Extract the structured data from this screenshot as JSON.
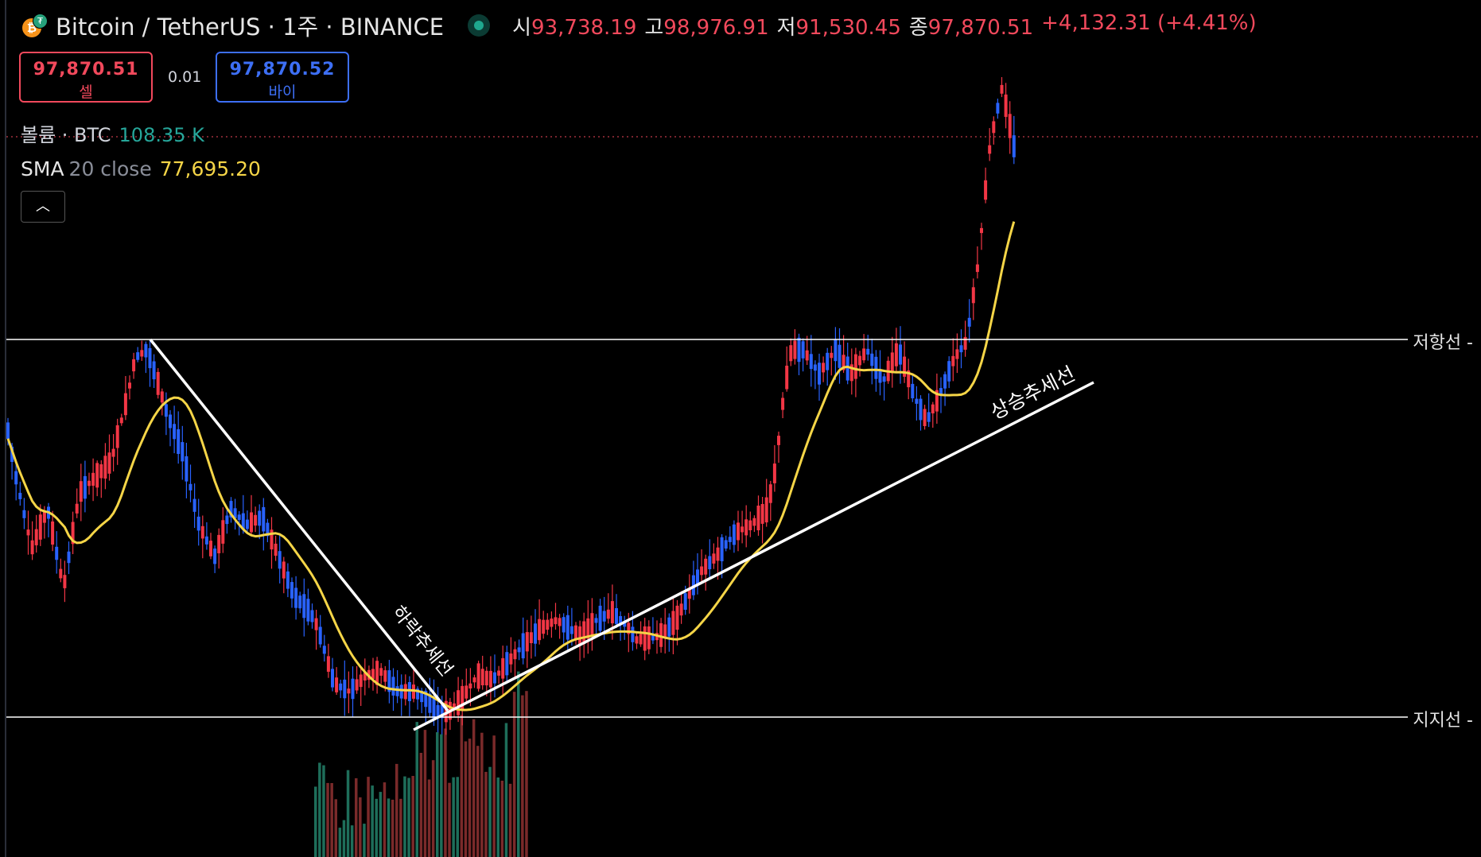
{
  "header": {
    "title": "Bitcoin / TetherUS · 1주 · BINANCE",
    "ohlc": {
      "open_label": "시",
      "open": "93,738.19",
      "high_label": "고",
      "high": "98,976.91",
      "low_label": "저",
      "low": "91,530.45",
      "close_label": "종",
      "close": "97,870.51",
      "change": "+4,132.31 (+4.41%)"
    }
  },
  "trade": {
    "sell_price": "97,870.51",
    "sell_label": "셀",
    "spread": "0.01",
    "buy_price": "97,870.52",
    "buy_label": "바이"
  },
  "indicators": {
    "volume_label": "볼륨 · BTC",
    "volume_value": "108.35 K",
    "sma_label": "SMA",
    "sma_params": "20 close",
    "sma_value": "77,695.20"
  },
  "annotations": {
    "resistance": "저항선 -",
    "support": "지지선 -",
    "downtrend": "하락추세선",
    "uptrend": "상승추세선"
  },
  "colors": {
    "up": "#f23645",
    "down": "#2962ff",
    "sma": "#f5d547",
    "volume_up": "#1e6e5a",
    "volume_down": "#7a2a2a",
    "background": "#000000"
  },
  "icons": {
    "collapse": "chevron-up-icon",
    "live": "live-dot-icon"
  }
}
